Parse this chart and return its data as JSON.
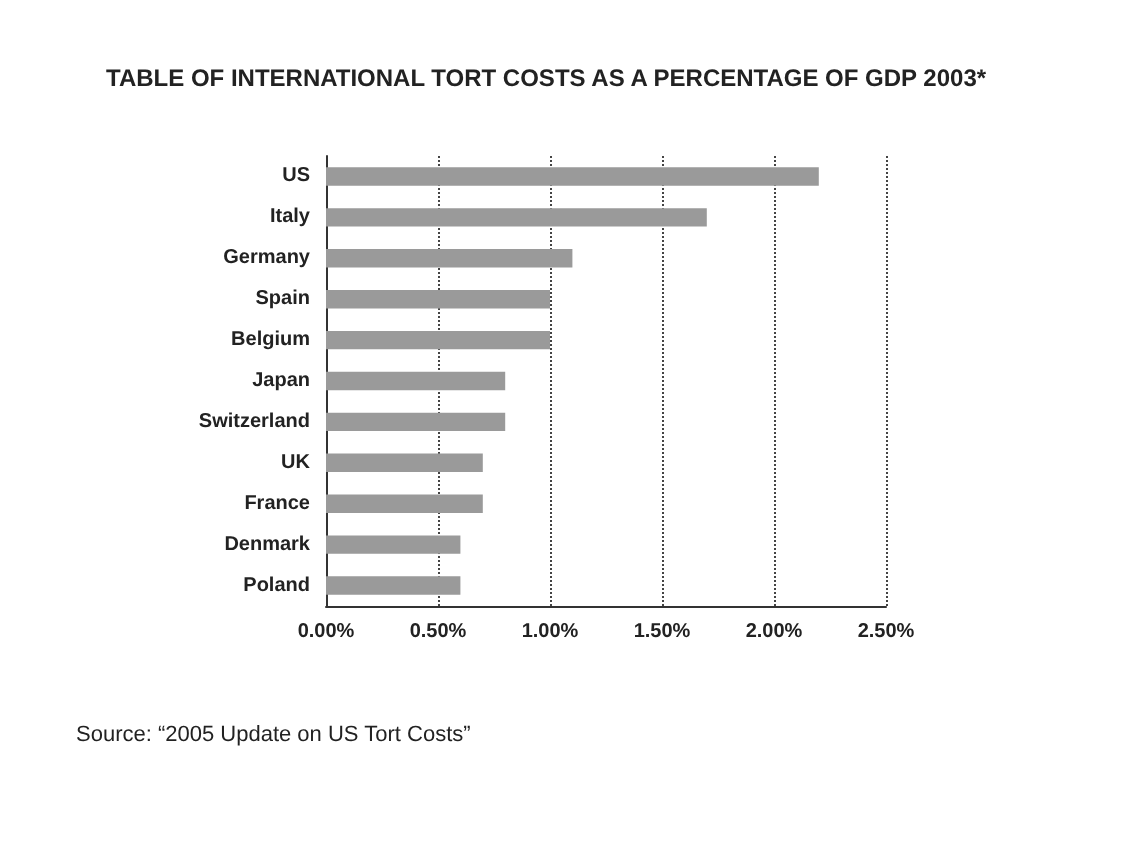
{
  "chart_data": {
    "type": "bar",
    "orientation": "horizontal",
    "title": "TABLE OF INTERNATIONAL TORT COSTS AS A PERCENTAGE OF GDP 2003*",
    "categories": [
      "US",
      "Italy",
      "Germany",
      "Spain",
      "Belgium",
      "Japan",
      "Switzerland",
      "UK",
      "France",
      "Denmark",
      "Poland"
    ],
    "values": [
      2.2,
      1.7,
      1.1,
      1.0,
      1.0,
      0.8,
      0.8,
      0.7,
      0.7,
      0.6,
      0.6
    ],
    "color": "#9a9a9a",
    "xlim": [
      0,
      2.5
    ],
    "xticks": [
      {
        "value": 0,
        "label": "0.00%"
      },
      {
        "value": 0.5,
        "label": "0.50%"
      },
      {
        "value": 1,
        "label": "1.00%"
      },
      {
        "value": 1.5,
        "label": "1.50%"
      },
      {
        "value": 2,
        "label": "2.00%"
      },
      {
        "value": 2.5,
        "label": "2.50%"
      }
    ],
    "grid": "x",
    "annotations": [
      "Source: “2005 Update on US Tort Costs”"
    ]
  }
}
